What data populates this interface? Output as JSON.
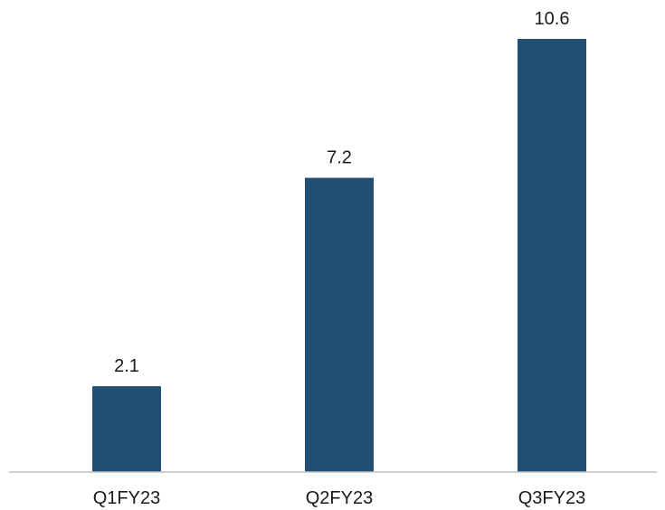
{
  "chart_data": {
    "type": "bar",
    "categories": [
      "Q1FY23",
      "Q2FY23",
      "Q3FY23"
    ],
    "values": [
      2.1,
      7.2,
      10.6
    ],
    "data_labels": [
      "2.1",
      "7.2",
      "10.6"
    ],
    "title": "",
    "xlabel": "",
    "ylabel": "",
    "ylim": [
      0,
      10.6
    ],
    "grid": false,
    "legend": "none",
    "colors": {
      "bar": "#214e75",
      "axis": "#bfbfbf",
      "text": "#1a1a1a"
    }
  }
}
